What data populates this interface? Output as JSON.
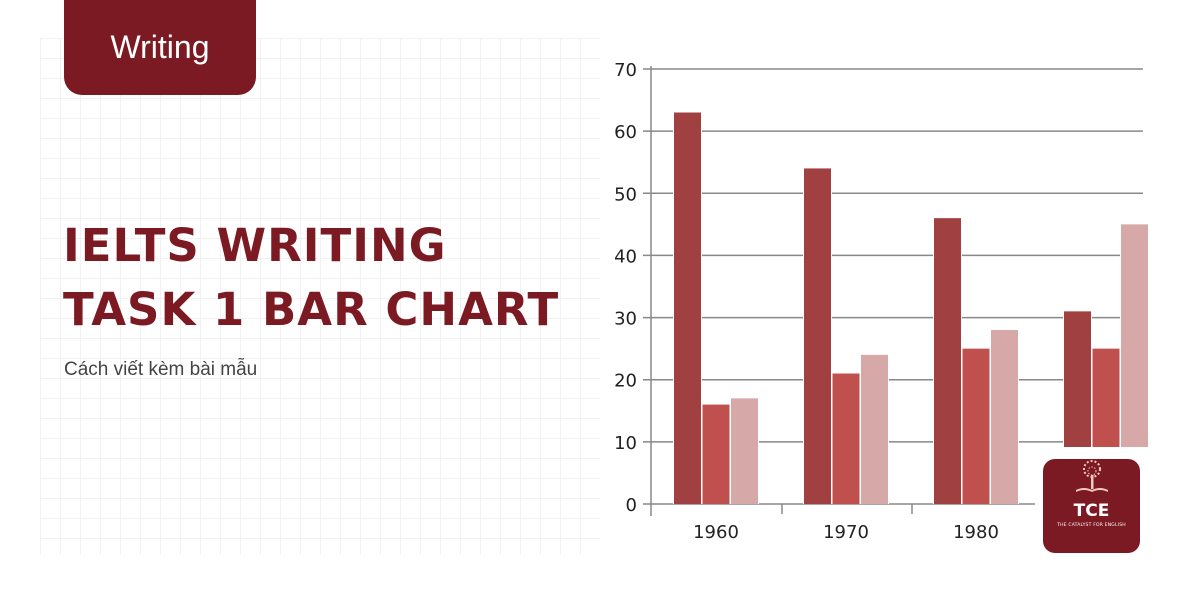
{
  "badge": {
    "label": "Writing"
  },
  "headline": {
    "line1": "IELTS WRITING",
    "line2": "TASK 1 BAR CHART"
  },
  "subtitle": "Cách viết kèm bài mẫu",
  "logo": {
    "name": "TCE",
    "tagline": "THE CATALYST FOR ENGLISH",
    "icon": "tree-book-icon"
  },
  "colors": {
    "brand": "#7b1a22",
    "series1": "#a04040",
    "series2": "#c0504d",
    "series3": "#d6a8a8"
  },
  "chart_data": {
    "type": "bar",
    "categories": [
      "1960",
      "1970",
      "1980",
      ""
    ],
    "series": [
      {
        "values": [
          63,
          54,
          46,
          31
        ]
      },
      {
        "values": [
          16,
          21,
          25,
          25
        ]
      },
      {
        "values": [
          17,
          24,
          28,
          45
        ]
      }
    ],
    "ylim": [
      0,
      70
    ],
    "yticks": [
      "0",
      "10",
      "20",
      "30",
      "40",
      "50",
      "60",
      "70"
    ],
    "grid": true,
    "xlabel": "",
    "ylabel": "",
    "title": ""
  }
}
